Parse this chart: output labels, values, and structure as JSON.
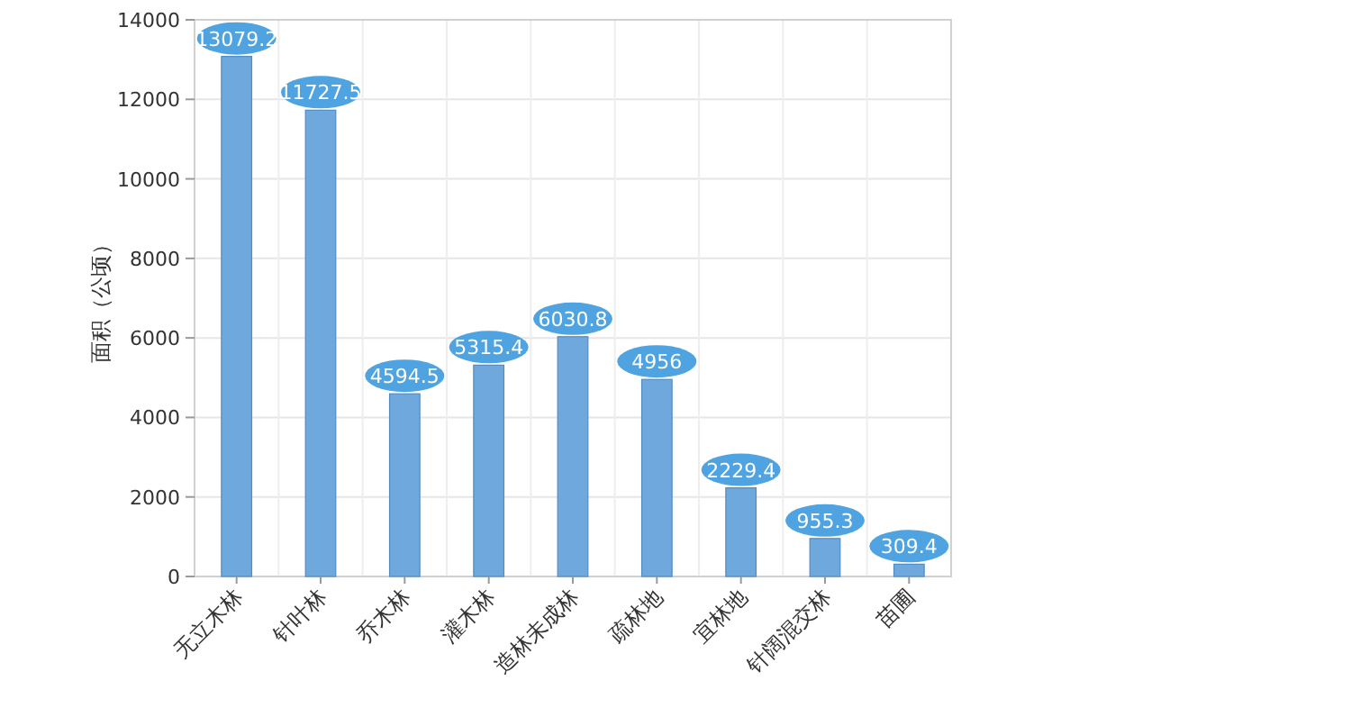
{
  "chart_data": {
    "type": "bar",
    "ylabel": "面积（公顷）",
    "categories": [
      "无立木林",
      "针叶林",
      "乔木林",
      "灌木林",
      "造林未成林",
      "疏林地",
      "宜林地",
      "针阔混交林",
      "苗圃"
    ],
    "values": [
      13079.2,
      11727.5,
      4594.5,
      5315.4,
      6030.8,
      4956,
      2229.4,
      955.3,
      309.4
    ],
    "color": "#6fa8dc",
    "ylim": [
      0,
      14000
    ],
    "yticks": [
      0,
      2000,
      4000,
      6000,
      8000,
      10000,
      12000,
      14000
    ],
    "grid": true,
    "data_labels": true
  }
}
